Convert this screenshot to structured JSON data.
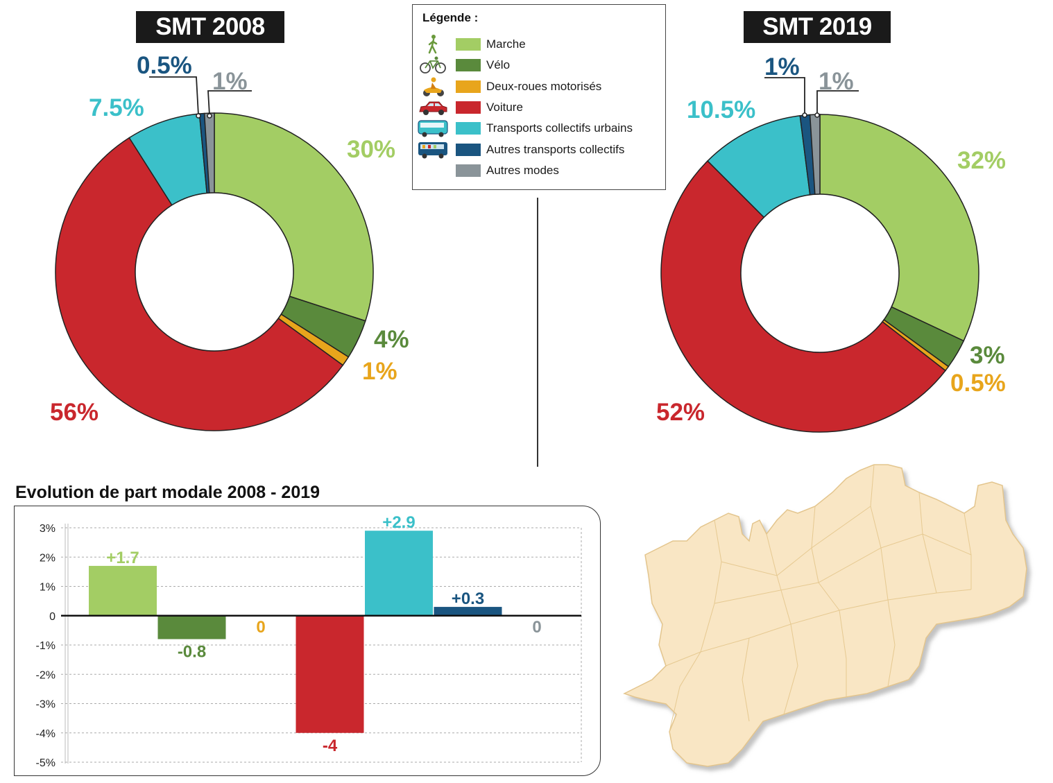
{
  "colors": {
    "marche": "#a3cd64",
    "velo": "#5a8a3c",
    "deux_roues": "#e8a51c",
    "voiture": "#c9272d",
    "tc_urbains": "#3bc0c9",
    "autres_tc": "#1a5580",
    "autres_modes": "#8a9499"
  },
  "legend": {
    "title": "Légende :",
    "items": [
      {
        "label": "Marche",
        "color": "#a3cd64",
        "icon": "pedestrian-icon"
      },
      {
        "label": "Vélo",
        "color": "#5a8a3c",
        "icon": "bicycle-icon"
      },
      {
        "label": "Deux-roues motorisés",
        "color": "#e8a51c",
        "icon": "scooter-icon"
      },
      {
        "label": "Voiture",
        "color": "#c9272d",
        "icon": "car-icon"
      },
      {
        "label": "Transports collectifs urbains",
        "color": "#3bc0c9",
        "icon": "bus-icon"
      },
      {
        "label": "Autres transports collectifs",
        "color": "#1a5580",
        "icon": "coach-icon"
      },
      {
        "label": "Autres modes",
        "color": "#8a9499",
        "icon": ""
      }
    ]
  },
  "chart_data": [
    {
      "type": "pie",
      "donut": true,
      "title": "SMT 2008",
      "categories": [
        "Marche",
        "Vélo",
        "Deux-roues motorisés",
        "Voiture",
        "Transports collectifs urbains",
        "Autres transports collectifs",
        "Autres modes"
      ],
      "values": [
        30,
        4,
        1,
        56,
        7.5,
        0.5,
        1
      ],
      "labels": [
        "30%",
        "4%",
        "1%",
        "56%",
        "7.5%",
        "0.5%",
        "1%"
      ]
    },
    {
      "type": "pie",
      "donut": true,
      "title": "SMT 2019",
      "categories": [
        "Marche",
        "Vélo",
        "Deux-roues motorisés",
        "Voiture",
        "Transports collectifs urbains",
        "Autres transports collectifs",
        "Autres modes"
      ],
      "values": [
        32,
        3,
        0.5,
        52,
        10.5,
        1,
        1
      ],
      "labels": [
        "32%",
        "3%",
        "0.5%",
        "52%",
        "10.5%",
        "1%",
        "1%"
      ]
    },
    {
      "type": "bar",
      "title": "Evolution de part modale 2008 - 2019",
      "categories": [
        "Marche",
        "Vélo",
        "Deux-roues motorisés",
        "Voiture",
        "Transports collectifs urbains",
        "Autres transports collectifs",
        "Autres modes"
      ],
      "values": [
        1.7,
        -0.8,
        0,
        -4,
        2.9,
        0.3,
        0
      ],
      "value_labels": [
        "+1.7",
        "-0.8",
        "0",
        "-4",
        "+2.9",
        "+0.3",
        "0"
      ],
      "yticks": [
        "3%",
        "2%",
        "1%",
        "0",
        "-1%",
        "-2%",
        "-3%",
        "-4%",
        "-5%"
      ],
      "ylim": [
        -5,
        3
      ],
      "grid": true
    }
  ]
}
